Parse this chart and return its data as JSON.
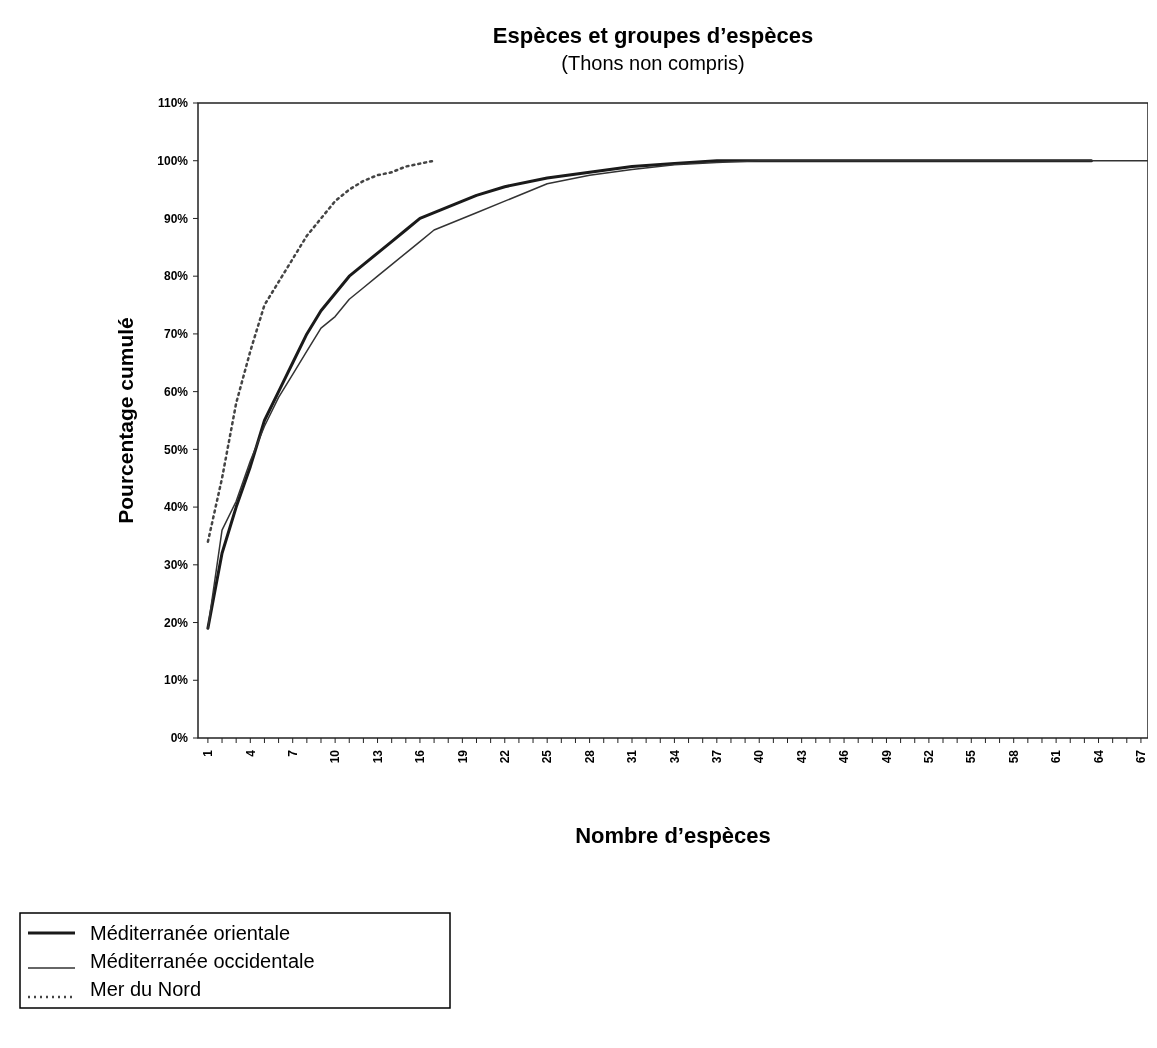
{
  "chart_data": {
    "type": "line",
    "title": "Espèces et groupes d’espèces",
    "subtitle": "(Thons non compris)",
    "xlabel": "Nombre d’espèces",
    "ylabel": "Pourcentage cumulé",
    "xlim": [
      0.3,
      67.5
    ],
    "xticks": [
      1,
      {
        "value": 2,
        "label": null
      },
      {
        "value": 3,
        "label": null
      },
      4,
      {
        "value": 5,
        "label": null
      },
      {
        "value": 6,
        "label": null
      },
      7,
      {
        "value": 8,
        "label": null
      },
      {
        "value": 9,
        "label": null
      },
      10,
      {
        "value": 11,
        "label": null
      },
      {
        "value": 12,
        "label": null
      },
      13,
      {
        "value": 14,
        "label": null
      },
      {
        "value": 15,
        "label": null
      },
      16,
      {
        "value": 17,
        "label": null
      },
      {
        "value": 18,
        "label": null
      },
      19,
      {
        "value": 20,
        "label": null
      },
      {
        "value": 21,
        "label": null
      },
      22,
      {
        "value": 23,
        "label": null
      },
      {
        "value": 24,
        "label": null
      },
      25,
      {
        "value": 26,
        "label": null
      },
      {
        "value": 27,
        "label": null
      },
      28,
      {
        "value": 29,
        "label": null
      },
      {
        "value": 30,
        "label": null
      },
      31,
      {
        "value": 32,
        "label": null
      },
      {
        "value": 33,
        "label": null
      },
      34,
      {
        "value": 35,
        "label": null
      },
      {
        "value": 36,
        "label": null
      },
      37,
      {
        "value": 38,
        "label": null
      },
      {
        "value": 39,
        "label": null
      },
      40,
      {
        "value": 41,
        "label": null
      },
      {
        "value": 42,
        "label": null
      },
      43,
      {
        "value": 44,
        "label": null
      },
      {
        "value": 45,
        "label": null
      },
      46,
      {
        "value": 47,
        "label": null
      },
      {
        "value": 48,
        "label": null
      },
      49,
      {
        "value": 50,
        "label": null
      },
      {
        "value": 51,
        "label": null
      },
      52,
      {
        "value": 53,
        "label": null
      },
      {
        "value": 54,
        "label": null
      },
      55,
      {
        "value": 56,
        "label": null
      },
      {
        "value": 57,
        "label": null
      },
      58,
      {
        "value": 59,
        "label": null
      },
      {
        "value": 60,
        "label": null
      },
      61,
      {
        "value": 62,
        "label": null
      },
      {
        "value": 63,
        "label": null
      },
      64,
      {
        "value": 65,
        "label": null
      },
      {
        "value": 66,
        "label": null
      },
      67
    ],
    "ylim": [
      0,
      110
    ],
    "yticks": [
      {
        "value": 0,
        "label": "0%"
      },
      {
        "value": 10,
        "label": "10%"
      },
      {
        "value": 20,
        "label": "20%"
      },
      {
        "value": 30,
        "label": "30%"
      },
      {
        "value": 40,
        "label": "40%"
      },
      {
        "value": 50,
        "label": "50%"
      },
      {
        "value": 60,
        "label": "60%"
      },
      {
        "value": 70,
        "label": "70%"
      },
      {
        "value": 80,
        "label": "80%"
      },
      {
        "value": 90,
        "label": "90%"
      },
      {
        "value": 100,
        "label": "100%"
      },
      {
        "value": 110,
        "label": "110%"
      }
    ],
    "grid": false,
    "legend": "bottom left",
    "marker": "none",
    "series": [
      {
        "name": "Méditerranée orientale",
        "color": "#1a1a1a",
        "line_style": "solid",
        "x": [
          1,
          2,
          3,
          4,
          5,
          6,
          7,
          8,
          9,
          10,
          11,
          12,
          13,
          14,
          15,
          16,
          17,
          18,
          19,
          20,
          22,
          25,
          28,
          31,
          34,
          37,
          40,
          45,
          50,
          55,
          60,
          63.5
        ],
        "values": [
          19,
          32,
          40,
          47,
          55,
          60,
          65,
          70,
          74,
          77,
          80,
          82,
          84,
          86,
          88,
          90,
          91,
          92,
          93,
          94,
          95.5,
          97,
          98,
          99,
          99.5,
          100,
          100,
          100,
          100,
          100,
          100,
          100
        ]
      },
      {
        "name": "Méditerranée occidentale",
        "color": "#333333",
        "line_style": "solid",
        "x": [
          1,
          2,
          3,
          4,
          5,
          6,
          7,
          8,
          9,
          10,
          11,
          12,
          13,
          14,
          15,
          16,
          17,
          18,
          19,
          20,
          22,
          25,
          28,
          31,
          34,
          37,
          40,
          45,
          50,
          55,
          60,
          67.5
        ],
        "values": [
          19,
          36,
          41,
          48,
          54,
          59,
          63,
          67,
          71,
          73,
          76,
          78,
          80,
          82,
          84,
          86,
          88,
          89,
          90,
          91,
          93,
          96,
          97.5,
          98.5,
          99.3,
          99.7,
          100,
          100,
          100,
          100,
          100,
          100
        ]
      },
      {
        "name": "Mer du Nord",
        "color": "#444444",
        "line_style": "dotted",
        "x": [
          1,
          2,
          3,
          4,
          5,
          6,
          7,
          8,
          9,
          10,
          11,
          12,
          13,
          14,
          15,
          16,
          17
        ],
        "values": [
          34,
          45,
          58,
          67,
          75,
          79,
          83,
          87,
          90,
          93,
          95,
          96.5,
          97.5,
          98,
          99,
          99.5,
          100
        ]
      }
    ]
  }
}
